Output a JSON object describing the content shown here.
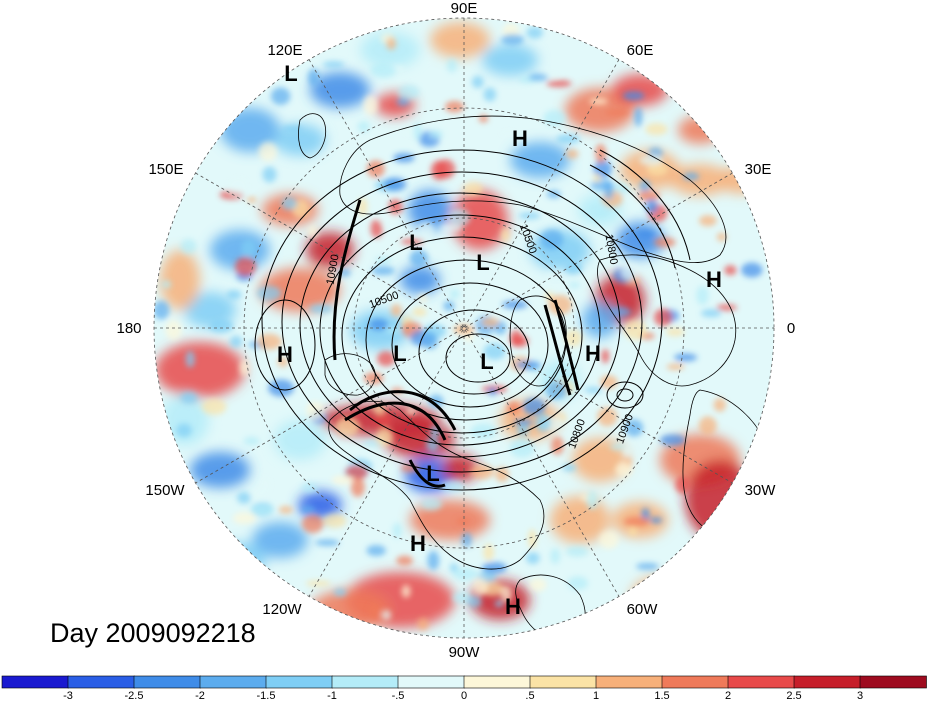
{
  "title": "Day 2009092218",
  "longitude_labels": [
    "90E",
    "60E",
    "30E",
    "0",
    "30W",
    "60W",
    "90W",
    "120W",
    "150W",
    "180",
    "150E",
    "120E"
  ],
  "pressure_centers": [
    {
      "type": "L",
      "lon_label": "120E-region"
    },
    {
      "type": "H",
      "lon_label": "60E-region"
    },
    {
      "type": "L",
      "lon_label": "120E-inner"
    },
    {
      "type": "L",
      "lon_label": "90E-inner"
    },
    {
      "type": "H",
      "lon_label": "0-region"
    },
    {
      "type": "H",
      "lon_label": "180-region"
    },
    {
      "type": "L",
      "lon_label": "pole-1"
    },
    {
      "type": "L",
      "lon_label": "pole-2"
    },
    {
      "type": "H",
      "lon_label": "30W-inner"
    },
    {
      "type": "L",
      "lon_label": "90W-inner"
    },
    {
      "type": "H",
      "lon_label": "90W-mid"
    },
    {
      "type": "H",
      "lon_label": "60W-region"
    }
  ],
  "contour_labels": [
    "10900",
    "10500",
    "10800",
    "10800",
    "10900",
    "10500"
  ],
  "colorbar": {
    "tick_labels": [
      "-3",
      "-2.5",
      "-2",
      "-1.5",
      "-1",
      "-.5",
      "0",
      ".5",
      "1",
      "1.5",
      "2",
      "2.5",
      "3"
    ],
    "colors": [
      "#1a1ad0",
      "#2a5ee6",
      "#3f8ce8",
      "#5cacee",
      "#7fcef5",
      "#b4ecf8",
      "#e2f9fa",
      "#fdf7d9",
      "#fbe3a6",
      "#f7b07a",
      "#ef7a5a",
      "#e84a4a",
      "#c61e2a",
      "#9e0b1f"
    ]
  },
  "colors": {
    "land_outline": "#000000",
    "contour": "#000000",
    "grid": "#555555"
  }
}
